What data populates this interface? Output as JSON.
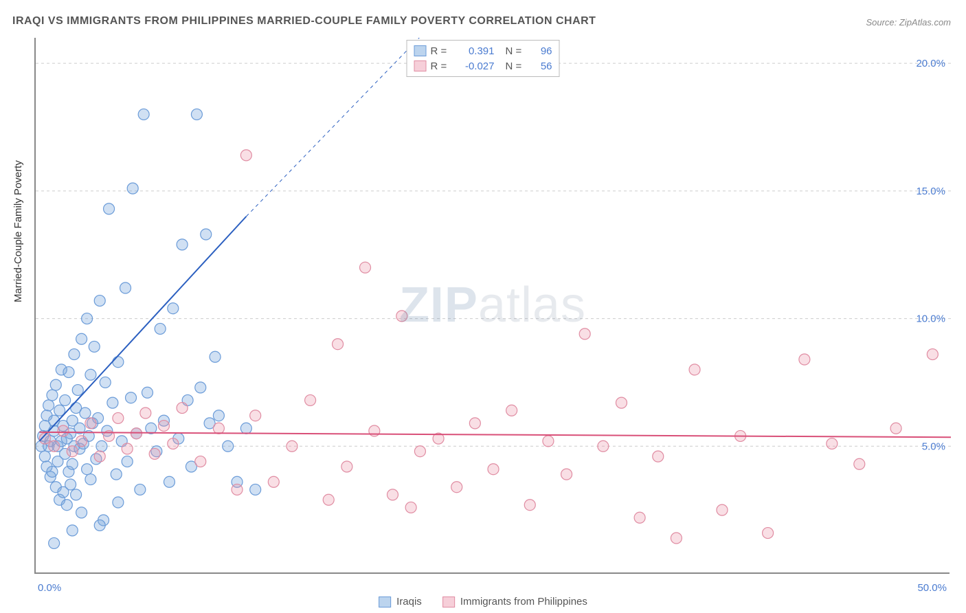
{
  "title": "IRAQI VS IMMIGRANTS FROM PHILIPPINES MARRIED-COUPLE FAMILY POVERTY CORRELATION CHART",
  "source": "Source: ZipAtlas.com",
  "y_axis_label": "Married-Couple Family Poverty",
  "watermark_a": "ZIP",
  "watermark_b": "atlas",
  "chart": {
    "type": "scatter",
    "xlim": [
      0,
      50
    ],
    "ylim": [
      0,
      21
    ],
    "x_ticks": [
      {
        "v": 0,
        "label": "0.0%"
      },
      {
        "v": 50,
        "label": "50.0%"
      }
    ],
    "y_ticks": [
      {
        "v": 5,
        "label": "5.0%"
      },
      {
        "v": 10,
        "label": "10.0%"
      },
      {
        "v": 15,
        "label": "15.0%"
      },
      {
        "v": 20,
        "label": "20.0%"
      }
    ],
    "grid_color": "#cccccc",
    "axis_color": "#888888",
    "background_color": "#ffffff",
    "marker_radius": 8,
    "marker_stroke_width": 1.2,
    "series": [
      {
        "name": "Iraqis",
        "color_fill": "rgba(120,165,220,0.35)",
        "color_stroke": "#6a9bd8",
        "swatch_fill": "#bcd4ee",
        "swatch_stroke": "#6a9bd8",
        "R": "0.391",
        "N": "96",
        "trend": {
          "x1": 0.2,
          "y1": 5.2,
          "x2": 11.5,
          "y2": 14.0,
          "solid_until_x": 11.5,
          "dash_to_x": 25,
          "dash_to_y": 24,
          "color": "#2b5fc0",
          "width": 2
        },
        "points": [
          [
            0.3,
            5.0
          ],
          [
            0.4,
            5.4
          ],
          [
            0.5,
            5.8
          ],
          [
            0.5,
            4.6
          ],
          [
            0.6,
            6.2
          ],
          [
            0.6,
            4.2
          ],
          [
            0.7,
            5.0
          ],
          [
            0.7,
            6.6
          ],
          [
            0.8,
            3.8
          ],
          [
            0.8,
            5.2
          ],
          [
            0.9,
            7.0
          ],
          [
            0.9,
            4.0
          ],
          [
            1.0,
            5.6
          ],
          [
            1.0,
            6.0
          ],
          [
            1.1,
            3.4
          ],
          [
            1.1,
            7.4
          ],
          [
            1.2,
            5.0
          ],
          [
            1.2,
            4.4
          ],
          [
            1.3,
            6.4
          ],
          [
            1.3,
            2.9
          ],
          [
            1.4,
            5.2
          ],
          [
            1.4,
            8.0
          ],
          [
            1.5,
            3.2
          ],
          [
            1.5,
            5.8
          ],
          [
            1.6,
            4.7
          ],
          [
            1.6,
            6.8
          ],
          [
            1.7,
            2.7
          ],
          [
            1.7,
            5.3
          ],
          [
            1.8,
            4.0
          ],
          [
            1.8,
            7.9
          ],
          [
            1.9,
            5.5
          ],
          [
            1.9,
            3.5
          ],
          [
            2.0,
            6.0
          ],
          [
            2.0,
            4.3
          ],
          [
            2.1,
            8.6
          ],
          [
            2.1,
            5.0
          ],
          [
            2.2,
            6.5
          ],
          [
            2.2,
            3.1
          ],
          [
            2.3,
            7.2
          ],
          [
            2.4,
            4.9
          ],
          [
            2.4,
            5.7
          ],
          [
            2.5,
            2.4
          ],
          [
            2.5,
            9.2
          ],
          [
            2.6,
            5.1
          ],
          [
            2.7,
            6.3
          ],
          [
            2.8,
            4.1
          ],
          [
            2.8,
            10.0
          ],
          [
            2.9,
            5.4
          ],
          [
            3.0,
            3.7
          ],
          [
            3.0,
            7.8
          ],
          [
            3.1,
            5.9
          ],
          [
            3.2,
            8.9
          ],
          [
            3.3,
            4.5
          ],
          [
            3.4,
            6.1
          ],
          [
            3.5,
            10.7
          ],
          [
            3.6,
            5.0
          ],
          [
            3.7,
            2.1
          ],
          [
            3.8,
            7.5
          ],
          [
            3.9,
            5.6
          ],
          [
            4.0,
            14.3
          ],
          [
            4.2,
            6.7
          ],
          [
            4.4,
            3.9
          ],
          [
            4.5,
            8.3
          ],
          [
            4.7,
            5.2
          ],
          [
            4.9,
            11.2
          ],
          [
            5.0,
            4.4
          ],
          [
            5.2,
            6.9
          ],
          [
            5.3,
            15.1
          ],
          [
            5.5,
            5.5
          ],
          [
            5.7,
            3.3
          ],
          [
            5.9,
            18.0
          ],
          [
            6.1,
            7.1
          ],
          [
            6.3,
            5.7
          ],
          [
            6.6,
            4.8
          ],
          [
            6.8,
            9.6
          ],
          [
            7.0,
            6.0
          ],
          [
            7.3,
            3.6
          ],
          [
            7.5,
            10.4
          ],
          [
            7.8,
            5.3
          ],
          [
            8.0,
            12.9
          ],
          [
            8.3,
            6.8
          ],
          [
            8.5,
            4.2
          ],
          [
            8.8,
            18.0
          ],
          [
            9.0,
            7.3
          ],
          [
            9.3,
            13.3
          ],
          [
            9.5,
            5.9
          ],
          [
            9.8,
            8.5
          ],
          [
            10.0,
            6.2
          ],
          [
            10.5,
            5.0
          ],
          [
            11.0,
            3.6
          ],
          [
            11.5,
            5.7
          ],
          [
            12.0,
            3.3
          ],
          [
            1.0,
            1.2
          ],
          [
            2.0,
            1.7
          ],
          [
            3.5,
            1.9
          ],
          [
            4.5,
            2.8
          ]
        ]
      },
      {
        "name": "Immigrants from Philippines",
        "color_fill": "rgba(235,150,170,0.30)",
        "color_stroke": "#e08ca2",
        "swatch_fill": "#f6cfd9",
        "swatch_stroke": "#e08ca2",
        "R": "-0.027",
        "N": "56",
        "trend": {
          "x1": 0.2,
          "y1": 5.55,
          "x2": 50,
          "y2": 5.35,
          "color": "#d94f78",
          "width": 2
        },
        "points": [
          [
            0.5,
            5.3
          ],
          [
            1.0,
            5.0
          ],
          [
            1.5,
            5.6
          ],
          [
            2.0,
            4.8
          ],
          [
            2.5,
            5.2
          ],
          [
            3.0,
            5.9
          ],
          [
            3.5,
            4.6
          ],
          [
            4.0,
            5.4
          ],
          [
            4.5,
            6.1
          ],
          [
            5.0,
            4.9
          ],
          [
            5.5,
            5.5
          ],
          [
            6.0,
            6.3
          ],
          [
            6.5,
            4.7
          ],
          [
            7.0,
            5.8
          ],
          [
            7.5,
            5.1
          ],
          [
            8.0,
            6.5
          ],
          [
            9.0,
            4.4
          ],
          [
            10.0,
            5.7
          ],
          [
            11.0,
            3.3
          ],
          [
            11.5,
            16.4
          ],
          [
            12.0,
            6.2
          ],
          [
            13.0,
            3.6
          ],
          [
            14.0,
            5.0
          ],
          [
            15.0,
            6.8
          ],
          [
            16.0,
            2.9
          ],
          [
            16.5,
            9.0
          ],
          [
            17.0,
            4.2
          ],
          [
            18.0,
            12.0
          ],
          [
            18.5,
            5.6
          ],
          [
            19.5,
            3.1
          ],
          [
            20.0,
            10.1
          ],
          [
            20.5,
            2.6
          ],
          [
            21.0,
            4.8
          ],
          [
            22.0,
            5.3
          ],
          [
            23.0,
            3.4
          ],
          [
            24.0,
            5.9
          ],
          [
            25.0,
            4.1
          ],
          [
            26.0,
            6.4
          ],
          [
            27.0,
            2.7
          ],
          [
            28.0,
            5.2
          ],
          [
            29.0,
            3.9
          ],
          [
            30.0,
            9.4
          ],
          [
            31.0,
            5.0
          ],
          [
            32.0,
            6.7
          ],
          [
            33.0,
            2.2
          ],
          [
            34.0,
            4.6
          ],
          [
            35.0,
            1.4
          ],
          [
            36.0,
            8.0
          ],
          [
            37.5,
            2.5
          ],
          [
            38.5,
            5.4
          ],
          [
            40.0,
            1.6
          ],
          [
            42.0,
            8.4
          ],
          [
            43.5,
            5.1
          ],
          [
            45.0,
            4.3
          ],
          [
            47.0,
            5.7
          ],
          [
            49.0,
            8.6
          ]
        ]
      }
    ]
  },
  "legend_bottom": [
    {
      "label": "Iraqis",
      "series": 0
    },
    {
      "label": "Immigrants from Philippines",
      "series": 1
    }
  ]
}
